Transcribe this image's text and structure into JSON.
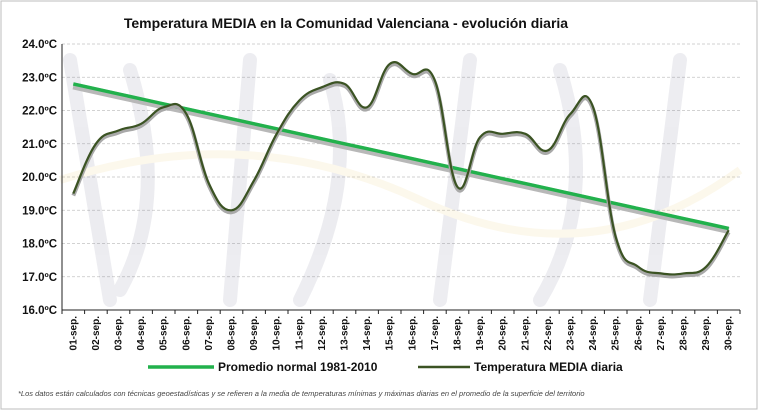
{
  "chart_data": {
    "type": "line",
    "title": "Temperatura  MEDIA en la Comunidad Valenciana - evolución diaria",
    "xlabel": "",
    "ylabel": "",
    "ylim": [
      16.0,
      24.0
    ],
    "y_ticks": [
      "16.0ºC",
      "17.0ºC",
      "18.0ºC",
      "19.0ºC",
      "20.0ºC",
      "21.0ºC",
      "22.0ºC",
      "23.0ºC",
      "24.0ºC"
    ],
    "categories": [
      "01-sep.",
      "02-sep.",
      "03-sep.",
      "04-sep.",
      "05-sep.",
      "06-sep.",
      "07-sep.",
      "08-sep.",
      "09-sep.",
      "10-sep.",
      "11-sep.",
      "12-sep.",
      "13-sep.",
      "14-sep.",
      "15-sep.",
      "16-sep.",
      "17-sep.",
      "18-sep.",
      "19-sep.",
      "20-sep.",
      "21-sep.",
      "22-sep.",
      "23-sep.",
      "24-sep.",
      "25-sep.",
      "26-sep.",
      "27-sep.",
      "28-sep.",
      "29-sep.",
      "30-sep."
    ],
    "grid": true,
    "legend_position": "bottom",
    "series": [
      {
        "name": "Promedio normal 1981-2010",
        "color": "#22b14c",
        "values": [
          22.8,
          22.65,
          22.5,
          22.35,
          22.2,
          22.05,
          21.9,
          21.75,
          21.6,
          21.45,
          21.3,
          21.15,
          21.0,
          20.85,
          20.7,
          20.55,
          20.4,
          20.25,
          20.1,
          19.95,
          19.8,
          19.65,
          19.5,
          19.35,
          19.2,
          19.05,
          18.9,
          18.75,
          18.6,
          18.45
        ]
      },
      {
        "name": "Temperatura MEDIA diaria",
        "color": "#3b5323",
        "values": [
          19.5,
          21.0,
          21.4,
          21.6,
          22.1,
          21.9,
          19.8,
          19.0,
          19.9,
          21.3,
          22.3,
          22.7,
          22.8,
          22.1,
          23.4,
          23.1,
          22.9,
          19.7,
          21.2,
          21.3,
          21.3,
          20.8,
          21.9,
          22.1,
          18.2,
          17.3,
          17.1,
          17.1,
          17.3,
          18.4
        ]
      }
    ]
  },
  "footnote": "*Los datos están calculados con técnicas geoestadísticas y se refieren a la media de temperaturas mínimas y máximas diarias en el promedio de la superficie del territorio"
}
